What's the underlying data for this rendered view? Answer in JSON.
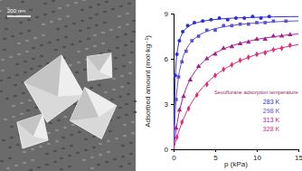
{
  "image": {
    "scale_bar": "200 nm"
  },
  "chart_data": {
    "type": "scatter",
    "x_label": "p (kPa)",
    "y_label": "Adsorbed amount (mol·kg⁻¹)",
    "legend_title": "Sevoflurane adsorption temperature:",
    "legend": "lower right",
    "grid": false,
    "xlim": [
      0,
      15
    ],
    "xticks": [
      0,
      5,
      10,
      15
    ],
    "ylim": [
      0,
      9
    ],
    "yticks": [
      0,
      3,
      6,
      9
    ],
    "series": [
      {
        "name": "283 K",
        "color": "#2e2ed6",
        "marker": "circle",
        "line_style": "solid",
        "x": [
          0.2,
          0.4,
          0.7,
          1.1,
          1.7,
          2.5,
          3.5,
          4.5,
          5.5,
          6.5,
          7.5,
          8.5,
          9.5,
          10.5,
          11.5
        ],
        "values": [
          4.9,
          6.3,
          7.2,
          7.8,
          8.2,
          8.4,
          8.5,
          8.6,
          8.7,
          8.6,
          8.7,
          8.7,
          8.8,
          8.7,
          8.8
        ],
        "fit": {
          "x": [
            0,
            0.25,
            0.5,
            1,
            1.5,
            2,
            3,
            4,
            5,
            6,
            8,
            10,
            12,
            14,
            15
          ],
          "values": [
            0,
            5.34,
            6.68,
            7.63,
            8.01,
            8.22,
            8.43,
            8.54,
            8.61,
            8.66,
            8.72,
            8.75,
            8.78,
            8.8,
            8.8
          ]
        }
      },
      {
        "name": "298 K",
        "color": "#5a4fd0",
        "marker": "square",
        "line_style": "solid",
        "x": [
          0.3,
          0.6,
          1,
          1.5,
          2.2,
          3,
          4,
          5,
          6,
          7,
          8,
          9,
          10,
          11,
          12,
          13.5
        ],
        "values": [
          3.3,
          4.8,
          5.8,
          6.5,
          7.2,
          7.5,
          7.9,
          7.9,
          8.2,
          8.2,
          8.3,
          8.3,
          8.4,
          8.4,
          8.5,
          8.5
        ],
        "fit": {
          "x": [
            0,
            0.25,
            0.5,
            1,
            1.5,
            2,
            3,
            4,
            5,
            6,
            8,
            10,
            12,
            14,
            15
          ],
          "values": [
            0,
            2.93,
            4.4,
            5.87,
            6.6,
            7.04,
            7.54,
            7.82,
            8.0,
            8.12,
            8.28,
            8.38,
            8.45,
            8.5,
            8.52
          ]
        }
      },
      {
        "name": "313 K",
        "color": "#a3228f",
        "marker": "triangle",
        "line_style": "solid",
        "x": [
          0.3,
          0.7,
          1.2,
          2,
          3,
          4,
          5,
          6,
          7,
          8,
          9,
          10,
          11,
          12,
          13,
          14
        ],
        "values": [
          1.4,
          2.6,
          3.5,
          4.6,
          5.5,
          6.0,
          6.3,
          6.7,
          6.8,
          7.0,
          7.1,
          7.3,
          7.3,
          7.5,
          7.5,
          7.6
        ],
        "fit": {
          "x": [
            0,
            0.25,
            0.5,
            1,
            1.5,
            2,
            3,
            4,
            5,
            6,
            8,
            10,
            12,
            14,
            15
          ],
          "values": [
            0,
            1.11,
            1.96,
            3.19,
            4.03,
            4.64,
            5.46,
            6.0,
            6.38,
            6.65,
            7.03,
            7.29,
            7.46,
            7.6,
            7.65
          ]
        }
      },
      {
        "name": "328 K",
        "color": "#e02d7a",
        "marker": "diamond",
        "line_style": "solid",
        "x": [
          0.4,
          1,
          1.8,
          2.8,
          4,
          5,
          6,
          7,
          8,
          9,
          10,
          11,
          12,
          13,
          14
        ],
        "values": [
          0.8,
          1.8,
          2.7,
          3.6,
          4.3,
          4.9,
          5.3,
          5.6,
          5.9,
          6.1,
          6.3,
          6.4,
          6.6,
          6.7,
          6.9
        ],
        "fit": {
          "x": [
            0,
            0.25,
            0.5,
            1,
            1.5,
            2,
            3,
            4,
            5,
            6,
            8,
            10,
            12,
            14,
            15
          ],
          "values": [
            0,
            0.52,
            0.98,
            1.76,
            2.4,
            2.93,
            3.77,
            4.4,
            4.89,
            5.28,
            5.87,
            6.29,
            6.6,
            6.84,
            6.95
          ]
        }
      }
    ]
  }
}
